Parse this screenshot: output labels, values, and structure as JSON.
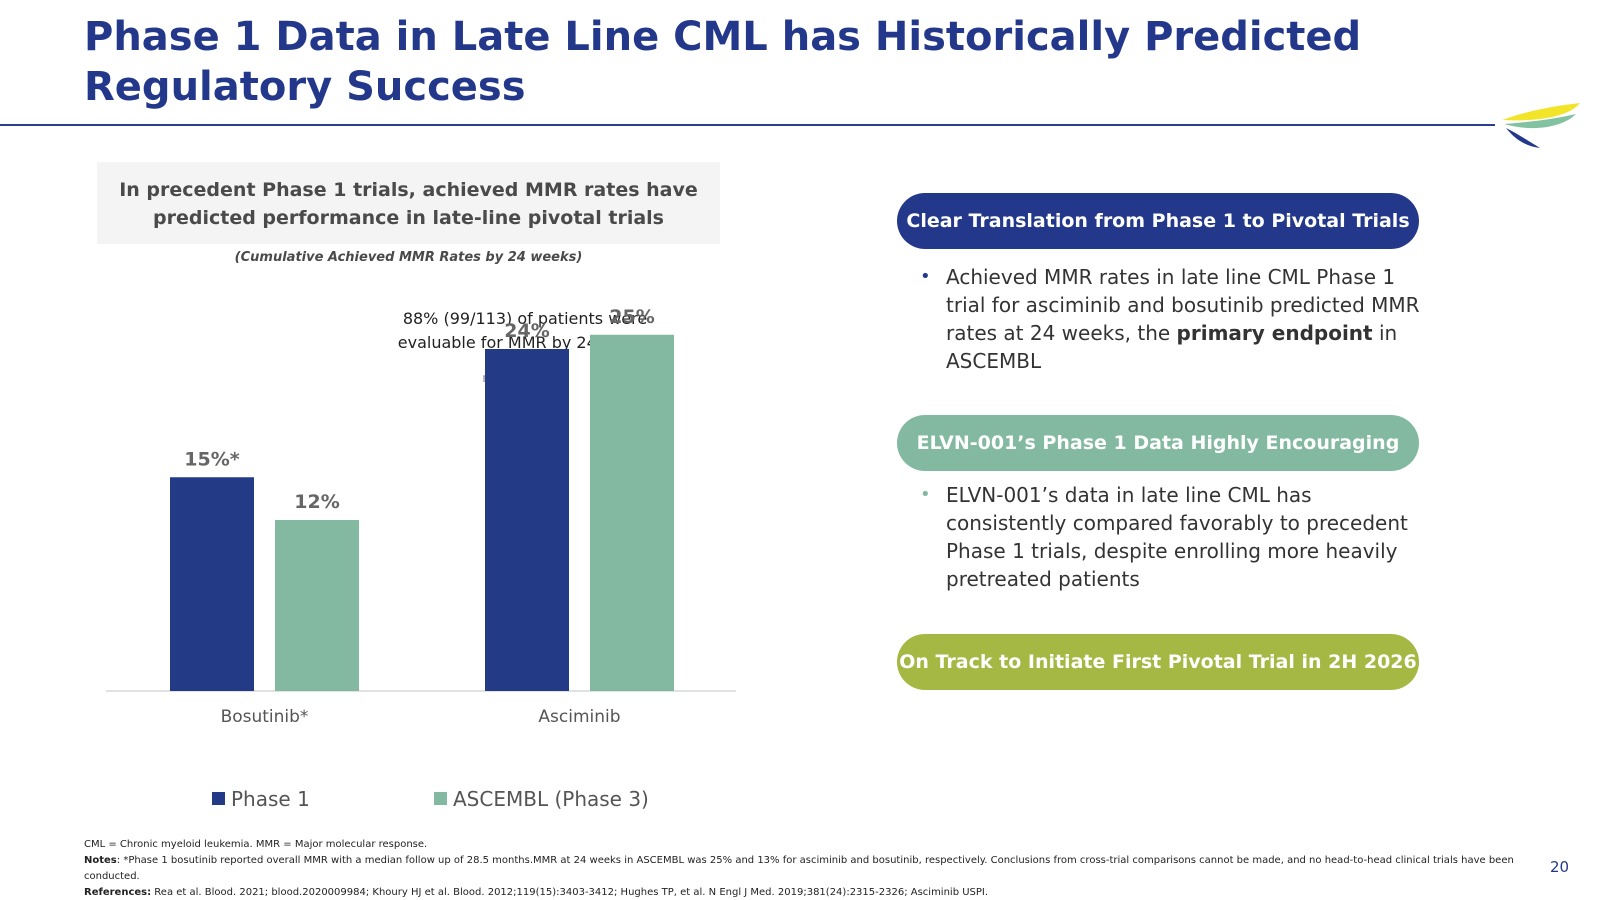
{
  "title": "Phase 1 Data in Late Line CML has Historically Predicted Regulatory Success",
  "precedent_box": {
    "line1": "In precedent Phase 1 trials, achieved MMR rates have",
    "line2": "predicted performance in late-line pivotal trials"
  },
  "chart_subtitle": "(Cumulative Achieved MMR Rates by 24 weeks)",
  "annotation": {
    "line1": "88% (99/113) of patients were",
    "line2": "evaluable for MMR by 24 weeks"
  },
  "chart_data": {
    "type": "bar",
    "categories": [
      "Bosutinib*",
      "Asciminib"
    ],
    "series": [
      {
        "name": "Phase 1",
        "values": [
          15,
          24
        ],
        "labels": [
          "15%*",
          "24%"
        ],
        "color": "#233b87"
      },
      {
        "name": "ASCEMBL (Phase 3)",
        "values": [
          12,
          25
        ],
        "labels": [
          "12%",
          "25%"
        ],
        "color": "#82b9a0"
      }
    ],
    "ylim": [
      0,
      40
    ],
    "grid": false,
    "legend_position": "bottom"
  },
  "right_panel": {
    "pill1": {
      "label": "Clear Translation from Phase 1 to Pivotal Trials",
      "color": "#23388a"
    },
    "bullet1": {
      "text_before": "Achieved MMR rates in late line CML Phase 1 trial for asciminib and bosutinib predicted MMR rates at 24 weeks, the ",
      "bold": "primary endpoint",
      "text_after": " in ASCEMBL",
      "bullet_color": "#23388a"
    },
    "pill2": {
      "label": "ELVN-001’s Phase 1 Data Highly Encouraging",
      "color": "#82b9a0"
    },
    "bullet2": {
      "text": "ELVN-001’s data in late line CML has consistently compared favorably to precedent Phase 1 trials, despite enrolling more heavily pretreated patients",
      "bullet_color": "#82b9a0"
    },
    "pill3": {
      "label": "On Track to Initiate First Pivotal Trial in 2H 2026",
      "color": "#a4b843"
    }
  },
  "footer": {
    "abbreviations": "CML = Chronic myeloid leukemia. MMR = Major molecular response.",
    "notes_label": "Notes",
    "notes_text": ": *Phase 1 bosutinib reported overall MMR with a median follow up of 28.5 months.MMR at 24 weeks in ASCEMBL was 25% and 13% for asciminib and bosutinib, respectively. Conclusions from cross-trial comparisons cannot be made, and no head-to-head clinical trials have been conducted.",
    "references_label": "References:",
    "references_text": " Rea et al. Blood. 2021; blood.2020009984; Khoury HJ et al. Blood. 2012;119(15):3403-3412; Hughes TP, et al. N Engl J Med. 2019;381(24):2315-2326; Asciminib USPI."
  },
  "page_number": "20",
  "colors": {
    "brand_navy": "#23388a",
    "brand_green": "#82b9a0",
    "brand_lime": "#a4b843"
  }
}
